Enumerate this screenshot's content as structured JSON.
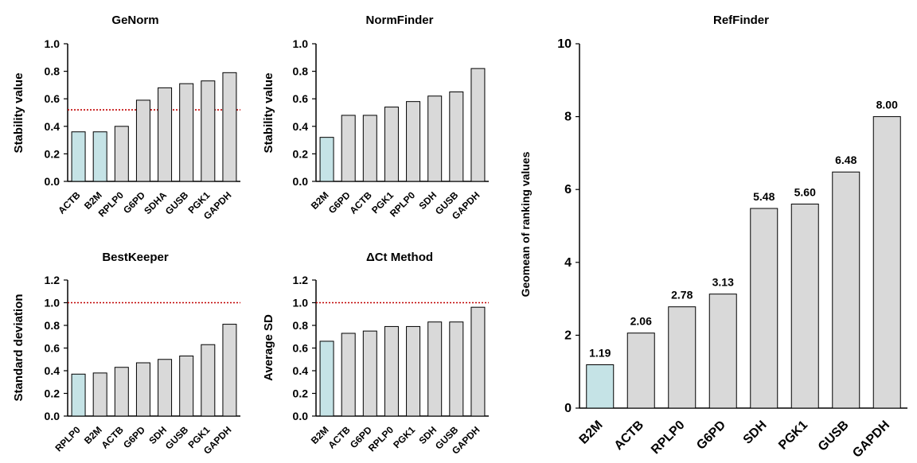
{
  "colors": {
    "bar": "#d9d9d9",
    "highlight": "#c5e3e6",
    "stroke": "#000000",
    "threshold": "#c00000"
  },
  "chart_data": [
    {
      "type": "bar",
      "title": "GeNorm",
      "ylabel": "Stability value",
      "xlabel": "",
      "categories": [
        "ACTB",
        "B2M",
        "RPLP0",
        "G6PD",
        "SDHA",
        "GUSB",
        "PGK1",
        "GAPDH"
      ],
      "values": [
        0.36,
        0.36,
        0.4,
        0.59,
        0.68,
        0.71,
        0.73,
        0.79
      ],
      "highlighted": [
        "ACTB",
        "B2M"
      ],
      "threshold": 0.52,
      "ylim": [
        0,
        1.0
      ],
      "yticks": [
        "0.0",
        "0.2",
        "0.4",
        "0.6",
        "0.8",
        "1.0"
      ]
    },
    {
      "type": "bar",
      "title": "NormFinder",
      "ylabel": "Stability value",
      "xlabel": "",
      "categories": [
        "B2M",
        "G6PD",
        "ACTB",
        "PGK1",
        "RPLP0",
        "SDH",
        "GUSB",
        "GAPDH"
      ],
      "values": [
        0.32,
        0.48,
        0.48,
        0.54,
        0.58,
        0.62,
        0.65,
        0.82
      ],
      "highlighted": [
        "B2M"
      ],
      "ylim": [
        0,
        1.0
      ],
      "yticks": [
        "0.0",
        "0.2",
        "0.4",
        "0.6",
        "0.8",
        "1.0"
      ]
    },
    {
      "type": "bar",
      "title": "BestKeeper",
      "ylabel": "Standard deviation",
      "xlabel": "",
      "categories": [
        "RPLP0",
        "B2M",
        "ACTB",
        "G6PD",
        "SDH",
        "GUSB",
        "PGK1",
        "GAPDH"
      ],
      "values": [
        0.37,
        0.38,
        0.43,
        0.47,
        0.5,
        0.53,
        0.63,
        0.81
      ],
      "highlighted": [
        "RPLP0"
      ],
      "threshold": 1.0,
      "ylim": [
        0,
        1.2
      ],
      "yticks": [
        "0.0",
        "0.2",
        "0.4",
        "0.6",
        "0.8",
        "1.0",
        "1.2"
      ]
    },
    {
      "type": "bar",
      "title": "ΔCt Method",
      "ylabel": "Average SD",
      "xlabel": "",
      "categories": [
        "B2M",
        "ACTB",
        "G6PD",
        "RPLP0",
        "PGK1",
        "SDH",
        "GUSB",
        "GAPDH"
      ],
      "values": [
        0.66,
        0.73,
        0.75,
        0.79,
        0.79,
        0.83,
        0.83,
        0.96
      ],
      "highlighted": [
        "B2M"
      ],
      "threshold": 1.0,
      "ylim": [
        0,
        1.2
      ],
      "yticks": [
        "0.0",
        "0.2",
        "0.4",
        "0.6",
        "0.8",
        "1.0",
        "1.2"
      ]
    },
    {
      "type": "bar",
      "title": "RefFinder",
      "ylabel": "Geomean of ranking values",
      "xlabel": "",
      "categories": [
        "B2M",
        "ACTB",
        "RPLP0",
        "G6PD",
        "SDH",
        "PGK1",
        "GUSB",
        "GAPDH"
      ],
      "values": [
        1.19,
        2.06,
        2.78,
        3.13,
        5.48,
        5.6,
        6.48,
        8.0
      ],
      "data_labels": [
        "1.19",
        "2.06",
        "2.78",
        "3.13",
        "5.48",
        "5.60",
        "6.48",
        "8.00"
      ],
      "highlighted": [
        "B2M"
      ],
      "ylim": [
        0,
        10
      ],
      "yticks": [
        "0",
        "2",
        "4",
        "6",
        "8",
        "10"
      ]
    }
  ]
}
